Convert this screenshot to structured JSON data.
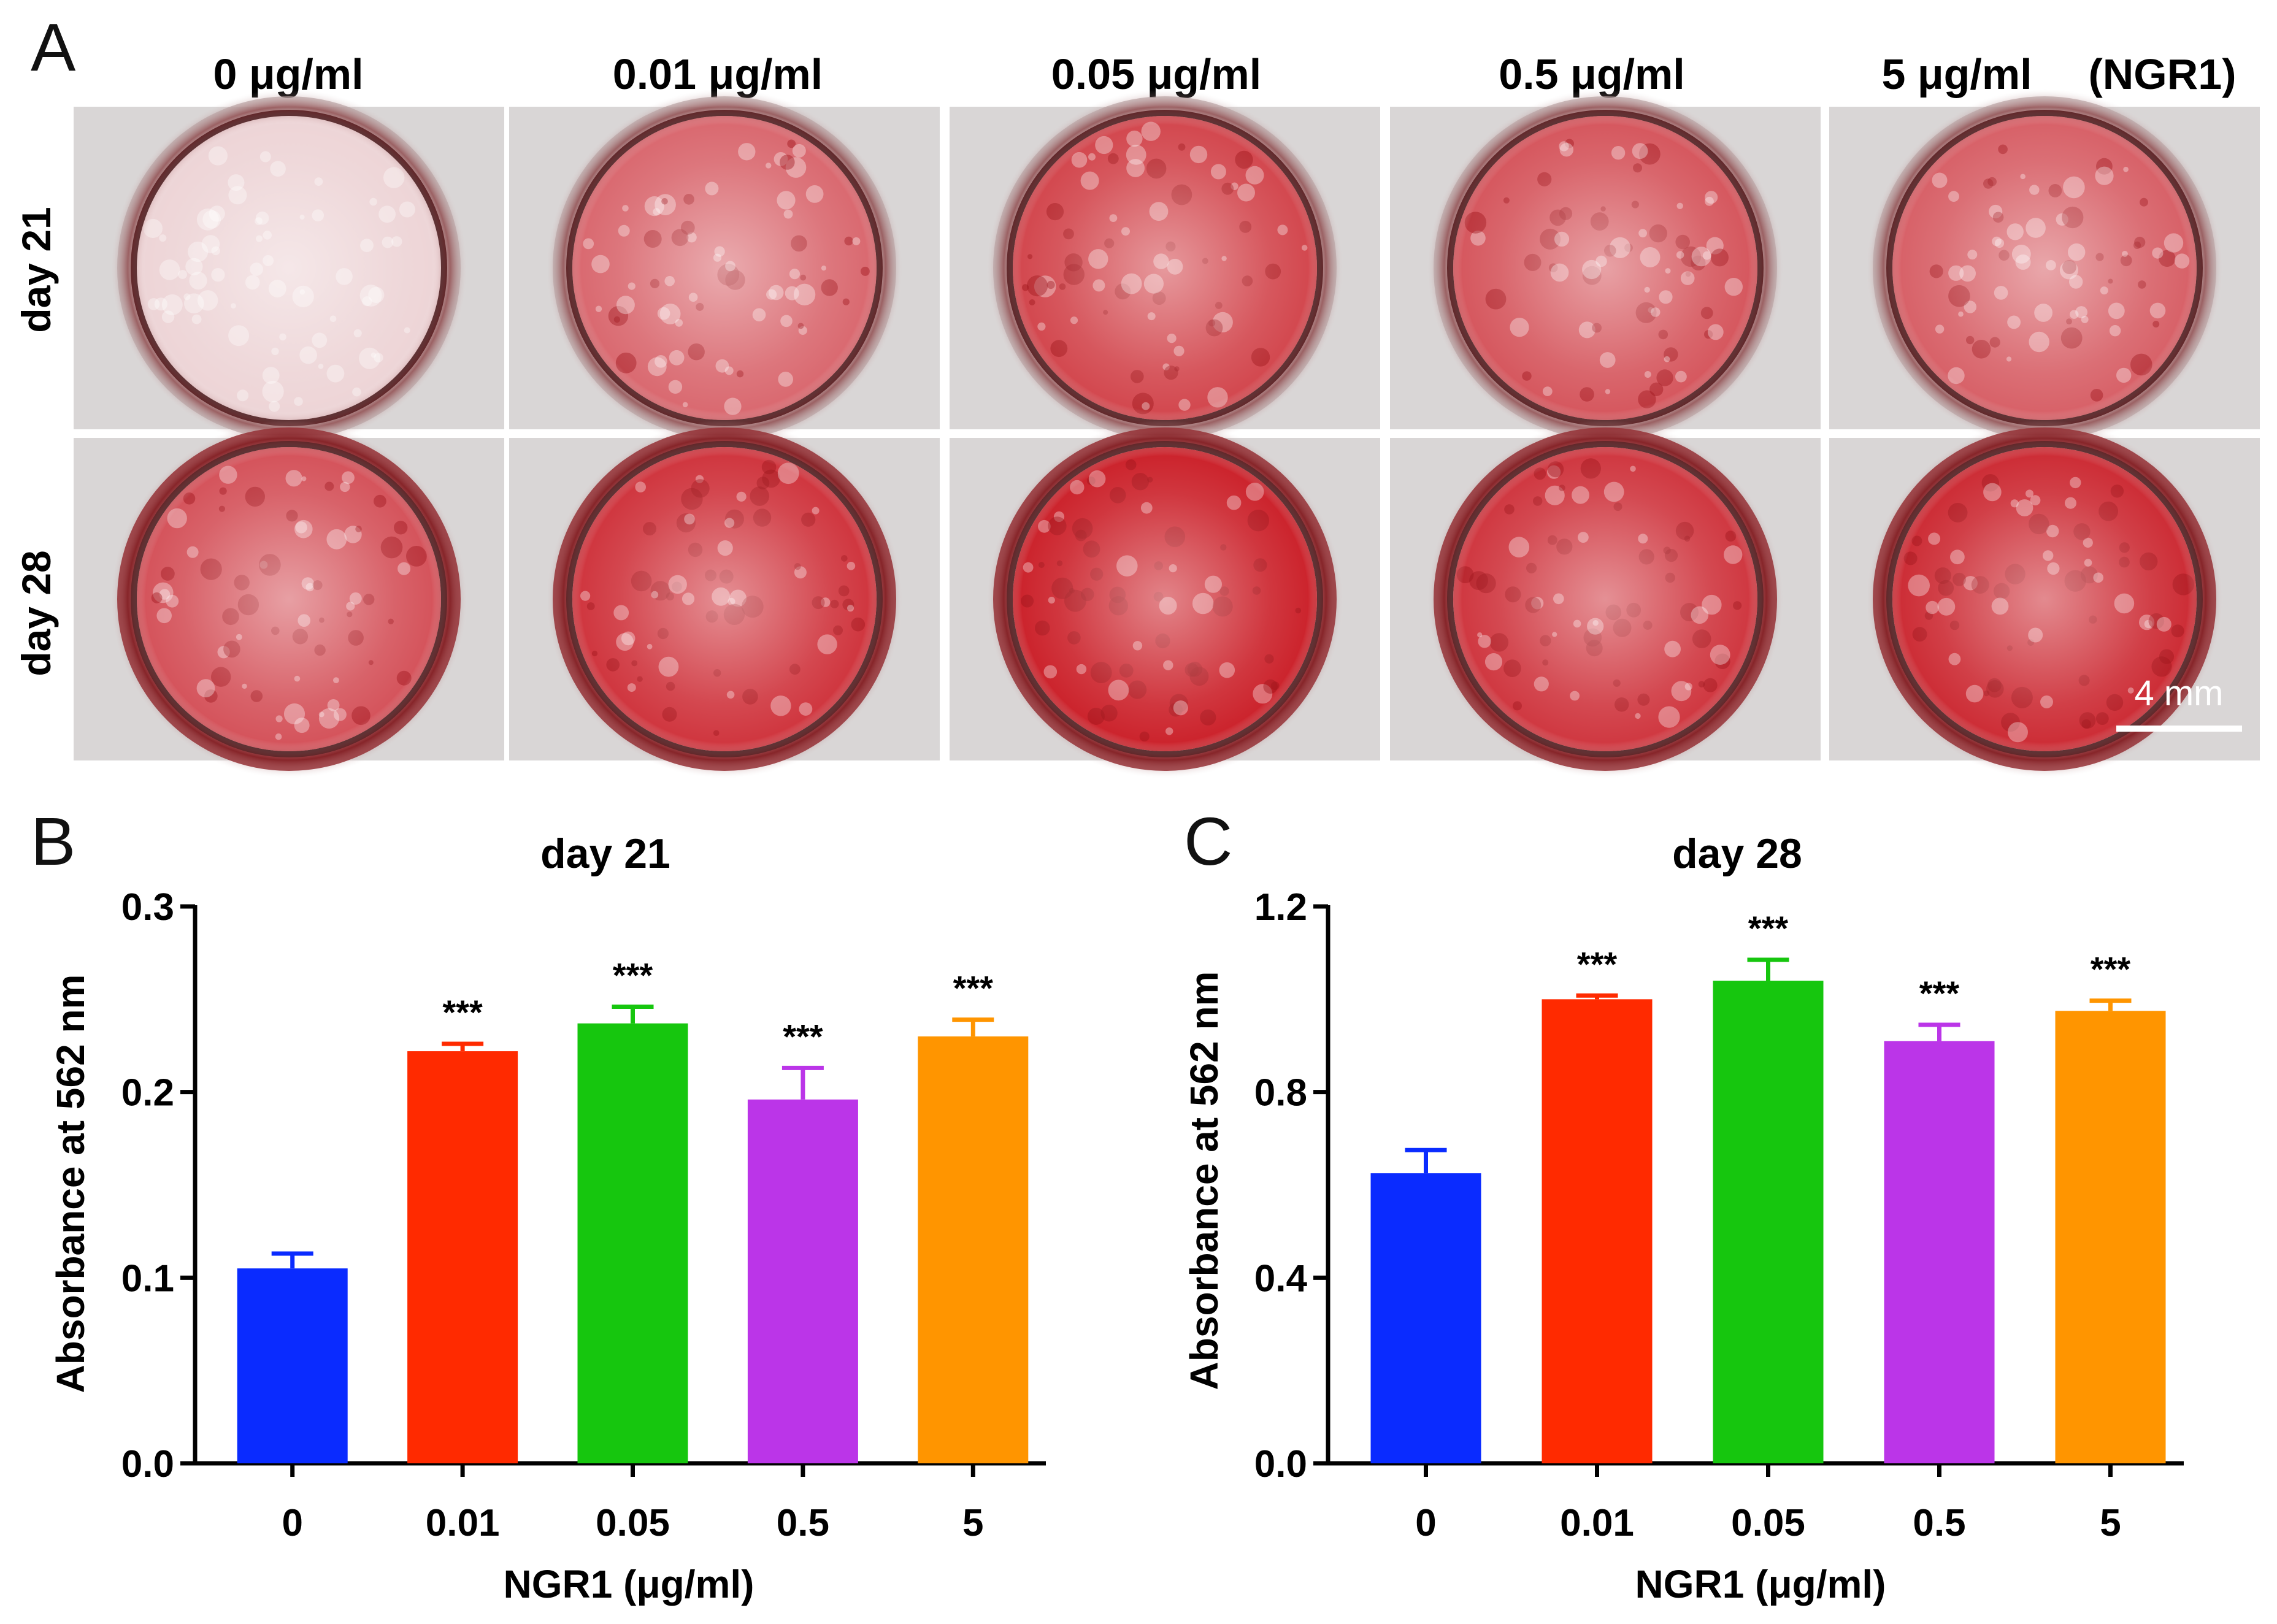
{
  "panel_a": {
    "letter": "A",
    "concentrations": [
      "0 μg/ml",
      "0.01 μg/ml",
      "0.05 μg/ml",
      "0.5 μg/ml",
      "5 μg/ml"
    ],
    "treatment_label": "(NGR1)",
    "row_labels": [
      "day 21",
      "day 28"
    ],
    "scale_bar_label": "4 mm",
    "stain_color": "#c8141e",
    "well_rim_color": "#3a1012",
    "plate_color": "#d9d6d6",
    "well_stain_levels": [
      [
        0.12,
        0.62,
        0.78,
        0.7,
        0.66
      ],
      [
        0.72,
        0.86,
        0.95,
        0.85,
        0.9
      ]
    ]
  },
  "chart_data": [
    {
      "type": "bar",
      "panel_letter": "B",
      "title": "day 21",
      "xlabel": "NGR1 (μg/ml)",
      "ylabel": "Absorbance at 562 nm",
      "categories": [
        "0",
        "0.01",
        "0.05",
        "0.5",
        "5"
      ],
      "values": [
        0.105,
        0.222,
        0.237,
        0.196,
        0.23
      ],
      "errors": [
        0.008,
        0.004,
        0.009,
        0.017,
        0.009
      ],
      "significance": [
        "",
        "***",
        "***",
        "***",
        "***"
      ],
      "colors": [
        "#0a2bff",
        "#ff2a00",
        "#16c60e",
        "#bb35e8",
        "#ff9500"
      ],
      "ylim": [
        0,
        0.3
      ],
      "yticks": [
        0.0,
        0.1,
        0.2,
        0.3
      ],
      "ytick_labels": [
        "0.0",
        "0.1",
        "0.2",
        "0.3"
      ]
    },
    {
      "type": "bar",
      "panel_letter": "C",
      "title": "day 28",
      "xlabel": "NGR1 (μg/ml)",
      "ylabel": "Absorbance at 562 nm",
      "categories": [
        "0",
        "0.01",
        "0.05",
        "0.5",
        "5"
      ],
      "values": [
        0.625,
        1.0,
        1.04,
        0.91,
        0.975
      ],
      "errors": [
        0.05,
        0.008,
        0.045,
        0.035,
        0.022
      ],
      "significance": [
        "",
        "***",
        "***",
        "***",
        "***"
      ],
      "colors": [
        "#0a2bff",
        "#ff2a00",
        "#16c60e",
        "#bb35e8",
        "#ff9500"
      ],
      "ylim": [
        0,
        1.2
      ],
      "yticks": [
        0.0,
        0.4,
        0.8,
        1.2
      ],
      "ytick_labels": [
        "0.0",
        "0.4",
        "0.8",
        "1.2"
      ]
    }
  ]
}
